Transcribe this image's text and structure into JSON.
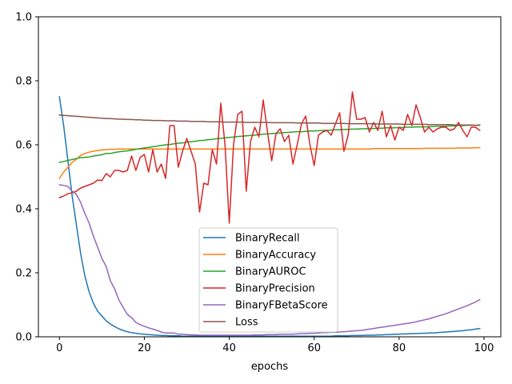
{
  "chart_data": {
    "type": "line",
    "title": "",
    "xlabel": "epochs",
    "ylabel": "",
    "xlim": [
      -4.95,
      103.95
    ],
    "ylim": [
      0.0,
      1.0
    ],
    "xticks": [
      0,
      20,
      40,
      60,
      80,
      100
    ],
    "yticks": [
      0.0,
      0.2,
      0.4,
      0.6,
      0.8,
      1.0
    ],
    "xtick_labels": [
      "0",
      "20",
      "40",
      "60",
      "80",
      "100"
    ],
    "ytick_labels": [
      "0.0",
      "0.2",
      "0.4",
      "0.6",
      "0.8",
      "1.0"
    ],
    "grid": false,
    "legend_position": "lower-center",
    "x": [
      0,
      1,
      2,
      3,
      4,
      5,
      6,
      7,
      8,
      9,
      10,
      11,
      12,
      13,
      14,
      15,
      16,
      17,
      18,
      19,
      20,
      21,
      22,
      23,
      24,
      25,
      26,
      27,
      28,
      29,
      30,
      31,
      32,
      33,
      34,
      35,
      36,
      37,
      38,
      39,
      40,
      41,
      42,
      43,
      44,
      45,
      46,
      47,
      48,
      49,
      50,
      51,
      52,
      53,
      54,
      55,
      56,
      57,
      58,
      59,
      60,
      61,
      62,
      63,
      64,
      65,
      66,
      67,
      68,
      69,
      70,
      71,
      72,
      73,
      74,
      75,
      76,
      77,
      78,
      79,
      80,
      81,
      82,
      83,
      84,
      85,
      86,
      87,
      88,
      89,
      90,
      91,
      92,
      93,
      94,
      95,
      96,
      97,
      98,
      99
    ],
    "series": [
      {
        "name": "BinaryRecall",
        "color": "#1f77b4",
        "values": [
          0.75,
          0.66,
          0.55,
          0.44,
          0.35,
          0.26,
          0.19,
          0.14,
          0.105,
          0.08,
          0.065,
          0.05,
          0.04,
          0.032,
          0.025,
          0.02,
          0.016,
          0.013,
          0.011,
          0.009,
          0.008,
          0.007,
          0.006,
          0.005,
          0.004,
          0.004,
          0.003,
          0.003,
          0.003,
          0.002,
          0.002,
          0.002,
          0.002,
          0.002,
          0.002,
          0.002,
          0.002,
          0.002,
          0.002,
          0.002,
          0.002,
          0.002,
          0.002,
          0.002,
          0.002,
          0.002,
          0.002,
          0.002,
          0.002,
          0.002,
          0.002,
          0.002,
          0.002,
          0.002,
          0.002,
          0.002,
          0.002,
          0.002,
          0.002,
          0.002,
          0.002,
          0.002,
          0.002,
          0.002,
          0.002,
          0.003,
          0.003,
          0.003,
          0.003,
          0.004,
          0.004,
          0.004,
          0.005,
          0.005,
          0.005,
          0.006,
          0.006,
          0.007,
          0.007,
          0.008,
          0.008,
          0.009,
          0.009,
          0.01,
          0.01,
          0.011,
          0.011,
          0.012,
          0.012,
          0.013,
          0.014,
          0.015,
          0.016,
          0.017,
          0.018,
          0.019,
          0.021,
          0.022,
          0.024,
          0.026
        ]
      },
      {
        "name": "BinaryAccuracy",
        "color": "#ff7f0e",
        "values": [
          0.495,
          0.515,
          0.53,
          0.545,
          0.555,
          0.567,
          0.573,
          0.577,
          0.58,
          0.582,
          0.584,
          0.585,
          0.586,
          0.586,
          0.587,
          0.587,
          0.587,
          0.587,
          0.587,
          0.587,
          0.587,
          0.587,
          0.587,
          0.587,
          0.587,
          0.587,
          0.587,
          0.587,
          0.587,
          0.587,
          0.587,
          0.587,
          0.587,
          0.587,
          0.587,
          0.587,
          0.587,
          0.587,
          0.587,
          0.587,
          0.587,
          0.587,
          0.587,
          0.587,
          0.587,
          0.587,
          0.587,
          0.587,
          0.587,
          0.587,
          0.587,
          0.587,
          0.587,
          0.587,
          0.587,
          0.587,
          0.587,
          0.587,
          0.587,
          0.587,
          0.587,
          0.587,
          0.587,
          0.587,
          0.587,
          0.587,
          0.587,
          0.587,
          0.587,
          0.587,
          0.587,
          0.587,
          0.587,
          0.587,
          0.588,
          0.588,
          0.588,
          0.588,
          0.588,
          0.588,
          0.588,
          0.588,
          0.588,
          0.588,
          0.588,
          0.588,
          0.589,
          0.589,
          0.589,
          0.589,
          0.589,
          0.589,
          0.589,
          0.589,
          0.59,
          0.59,
          0.59,
          0.59,
          0.591,
          0.591
        ]
      },
      {
        "name": "BinaryAUROC",
        "color": "#2ca02c",
        "values": [
          0.545,
          0.548,
          0.551,
          0.554,
          0.557,
          0.56,
          0.561,
          0.562,
          0.565,
          0.567,
          0.569,
          0.573,
          0.573,
          0.576,
          0.578,
          0.58,
          0.581,
          0.583,
          0.586,
          0.588,
          0.59,
          0.592,
          0.594,
          0.596,
          0.598,
          0.6,
          0.601,
          0.603,
          0.605,
          0.606,
          0.608,
          0.61,
          0.611,
          0.613,
          0.614,
          0.616,
          0.617,
          0.619,
          0.62,
          0.622,
          0.623,
          0.624,
          0.626,
          0.627,
          0.628,
          0.629,
          0.63,
          0.632,
          0.633,
          0.634,
          0.635,
          0.636,
          0.637,
          0.638,
          0.639,
          0.64,
          0.641,
          0.641,
          0.642,
          0.643,
          0.643,
          0.644,
          0.645,
          0.645,
          0.646,
          0.647,
          0.647,
          0.648,
          0.648,
          0.649,
          0.649,
          0.65,
          0.65,
          0.651,
          0.651,
          0.652,
          0.652,
          0.653,
          0.653,
          0.653,
          0.654,
          0.654,
          0.655,
          0.655,
          0.656,
          0.656,
          0.656,
          0.657,
          0.657,
          0.658,
          0.658,
          0.658,
          0.659,
          0.659,
          0.66,
          0.66,
          0.661,
          0.661,
          0.661,
          0.662
        ]
      },
      {
        "name": "BinaryPrecision",
        "color": "#d62728",
        "values": [
          0.435,
          0.44,
          0.447,
          0.45,
          0.455,
          0.465,
          0.47,
          0.475,
          0.48,
          0.49,
          0.488,
          0.51,
          0.5,
          0.52,
          0.52,
          0.515,
          0.52,
          0.565,
          0.52,
          0.56,
          0.57,
          0.515,
          0.585,
          0.515,
          0.54,
          0.495,
          0.66,
          0.66,
          0.53,
          0.58,
          0.62,
          0.58,
          0.54,
          0.39,
          0.48,
          0.475,
          0.585,
          0.54,
          0.73,
          0.6,
          0.355,
          0.6,
          0.695,
          0.705,
          0.455,
          0.61,
          0.655,
          0.625,
          0.74,
          0.64,
          0.55,
          0.635,
          0.65,
          0.61,
          0.63,
          0.54,
          0.6,
          0.665,
          0.69,
          0.6,
          0.535,
          0.63,
          0.64,
          0.645,
          0.63,
          0.665,
          0.7,
          0.58,
          0.63,
          0.765,
          0.68,
          0.68,
          0.685,
          0.64,
          0.67,
          0.645,
          0.705,
          0.625,
          0.66,
          0.615,
          0.655,
          0.645,
          0.695,
          0.66,
          0.725,
          0.685,
          0.64,
          0.655,
          0.64,
          0.65,
          0.655,
          0.655,
          0.645,
          0.65,
          0.67,
          0.645,
          0.625,
          0.655,
          0.655,
          0.645
        ]
      },
      {
        "name": "BinaryFBetaScore",
        "color": "#9467bd",
        "values": [
          0.475,
          0.473,
          0.47,
          0.455,
          0.445,
          0.42,
          0.385,
          0.355,
          0.315,
          0.28,
          0.245,
          0.22,
          0.175,
          0.15,
          0.115,
          0.092,
          0.07,
          0.06,
          0.045,
          0.038,
          0.033,
          0.028,
          0.024,
          0.02,
          0.015,
          0.012,
          0.012,
          0.012,
          0.008,
          0.008,
          0.007,
          0.006,
          0.006,
          0.005,
          0.005,
          0.005,
          0.005,
          0.005,
          0.005,
          0.005,
          0.005,
          0.005,
          0.005,
          0.005,
          0.005,
          0.005,
          0.006,
          0.006,
          0.006,
          0.007,
          0.007,
          0.007,
          0.008,
          0.008,
          0.008,
          0.008,
          0.009,
          0.01,
          0.01,
          0.011,
          0.011,
          0.012,
          0.013,
          0.013,
          0.014,
          0.014,
          0.015,
          0.016,
          0.017,
          0.018,
          0.019,
          0.02,
          0.022,
          0.024,
          0.026,
          0.028,
          0.03,
          0.032,
          0.034,
          0.036,
          0.038,
          0.04,
          0.042,
          0.044,
          0.047,
          0.05,
          0.053,
          0.056,
          0.06,
          0.064,
          0.068,
          0.072,
          0.077,
          0.082,
          0.087,
          0.092,
          0.097,
          0.103,
          0.109,
          0.116
        ]
      },
      {
        "name": "Loss",
        "color": "#8c564b",
        "values": [
          0.693,
          0.692,
          0.691,
          0.69,
          0.689,
          0.688,
          0.687,
          0.686,
          0.685,
          0.684,
          0.683,
          0.682,
          0.682,
          0.681,
          0.68,
          0.68,
          0.679,
          0.679,
          0.678,
          0.678,
          0.677,
          0.677,
          0.676,
          0.676,
          0.676,
          0.675,
          0.675,
          0.675,
          0.674,
          0.674,
          0.674,
          0.673,
          0.673,
          0.673,
          0.673,
          0.672,
          0.672,
          0.672,
          0.672,
          0.671,
          0.671,
          0.671,
          0.671,
          0.671,
          0.67,
          0.67,
          0.67,
          0.67,
          0.67,
          0.67,
          0.669,
          0.669,
          0.669,
          0.669,
          0.669,
          0.669,
          0.668,
          0.668,
          0.668,
          0.668,
          0.668,
          0.668,
          0.667,
          0.667,
          0.667,
          0.667,
          0.667,
          0.667,
          0.666,
          0.666,
          0.666,
          0.666,
          0.666,
          0.666,
          0.666,
          0.665,
          0.665,
          0.665,
          0.665,
          0.665,
          0.665,
          0.664,
          0.664,
          0.664,
          0.664,
          0.664,
          0.664,
          0.663,
          0.663,
          0.663,
          0.663,
          0.663,
          0.663,
          0.662,
          0.662,
          0.662,
          0.662,
          0.662,
          0.661,
          0.661
        ]
      }
    ]
  }
}
